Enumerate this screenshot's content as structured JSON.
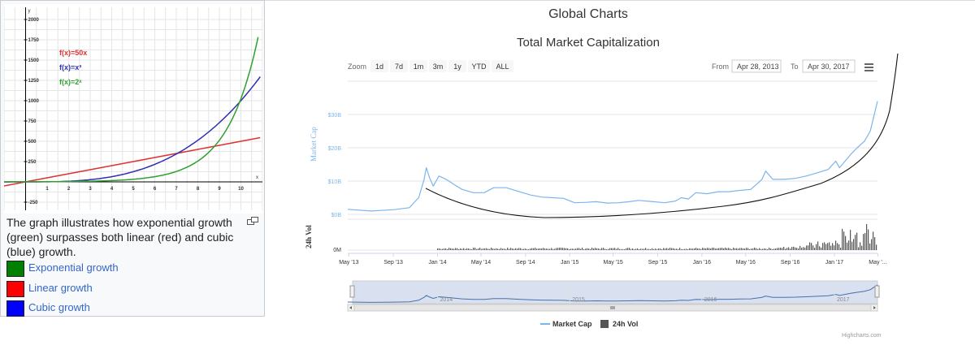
{
  "left_panel": {
    "caption": "The graph illustrates how exponential growth (green) surpasses both linear (red) and cubic (blue) growth.",
    "legend": [
      {
        "label": "Exponential growth",
        "color": "#008000"
      },
      {
        "label": "Linear growth",
        "color": "#ff0000"
      },
      {
        "label": "Cubic growth",
        "color": "#0000ff"
      }
    ],
    "enlarge_icon": "enlarge-icon"
  },
  "page_title": "Global Charts",
  "chart_data": [
    {
      "type": "line",
      "x_ticks": [
        "1",
        "2",
        "3",
        "4",
        "5",
        "6",
        "7",
        "8",
        "9",
        "10"
      ],
      "y_ticks": [
        "-250",
        "250",
        "500",
        "750",
        "1000",
        "1250",
        "1500",
        "1750",
        "2000"
      ],
      "axis_names": {
        "x": "x",
        "y": "y"
      },
      "xlim": [
        -1,
        11
      ],
      "ylim": [
        -350,
        2150
      ],
      "annotations": [
        {
          "text": "f(x)=50x",
          "color": "#e03030"
        },
        {
          "text": "f(x)=x³",
          "color": "#3030b0"
        },
        {
          "text": "f(x)=2ˣ",
          "color": "#30a030"
        }
      ],
      "series": [
        {
          "color": "#e03030",
          "x": [
            -1,
            0,
            1,
            2,
            3,
            4,
            5,
            6,
            7,
            8,
            9,
            10,
            11
          ],
          "values": [
            -50,
            0,
            50,
            100,
            150,
            200,
            250,
            300,
            350,
            400,
            450,
            500,
            550
          ]
        },
        {
          "color": "#3030b0",
          "x": [
            -1,
            0,
            1,
            2,
            3,
            4,
            5,
            6,
            7,
            8,
            9,
            10,
            11
          ],
          "values": [
            -1,
            0,
            1,
            8,
            27,
            64,
            125,
            216,
            343,
            512,
            729,
            1000,
            1331
          ]
        },
        {
          "color": "#30a030",
          "x": [
            -1,
            0,
            1,
            2,
            3,
            4,
            5,
            6,
            7,
            8,
            9,
            10,
            11
          ],
          "values": [
            0.5,
            1,
            2,
            4,
            8,
            16,
            32,
            64,
            128,
            256,
            512,
            1024,
            2048
          ]
        }
      ],
      "grid": true
    },
    {
      "type": "line",
      "title": "Total Market Capitalization",
      "ylabel": "Market Cap",
      "ylabel_volume": "24h Vol",
      "y_ticks": [
        "$0B",
        "$10B",
        "$20B",
        "$30B"
      ],
      "volume_ticks": [
        "0M"
      ],
      "ylim": [
        0,
        40
      ],
      "x_ticks": [
        "May '13",
        "Sep '13",
        "Jan '14",
        "May '14",
        "Sep '14",
        "Jan '15",
        "May '15",
        "Sep '15",
        "Jan '16",
        "May '16",
        "Sep '16",
        "Jan '17",
        "May '..."
      ],
      "x_tick_dates": [
        "2013-05-01",
        "2013-09-01",
        "2014-01-01",
        "2014-05-01",
        "2014-09-01",
        "2015-01-01",
        "2015-05-01",
        "2015-09-01",
        "2016-01-01",
        "2016-05-01",
        "2016-09-01",
        "2017-01-01",
        "2017-05-01"
      ],
      "navigator_labels": [
        "2014",
        "2015",
        "2016",
        "2017"
      ],
      "navigator_label_dates": [
        "2014-01-01",
        "2015-01-01",
        "2016-01-01",
        "2017-01-01"
      ],
      "zoom_label": "Zoom",
      "zoom_buttons": [
        "1d",
        "7d",
        "1m",
        "3m",
        "1y",
        "YTD",
        "ALL"
      ],
      "from_label": "From",
      "from_value": "Apr 28, 2013",
      "to_label": "To",
      "to_value": "Apr 30, 2017",
      "legend": [
        {
          "label": "Market Cap",
          "color": "#7cb5ec"
        },
        {
          "label": "24h Vol",
          "color": "#434348"
        }
      ],
      "credits": "Highcharts.com",
      "series": [
        {
          "name": "Market Cap",
          "color": "#7cb5ec",
          "x": [
            "2013-04-28",
            "2013-07-01",
            "2013-09-01",
            "2013-10-15",
            "2013-11-10",
            "2013-11-25",
            "2013-12-01",
            "2013-12-10",
            "2013-12-20",
            "2014-01-05",
            "2014-01-25",
            "2014-02-15",
            "2014-03-10",
            "2014-04-10",
            "2014-05-10",
            "2014-06-05",
            "2014-07-10",
            "2014-08-15",
            "2014-09-15",
            "2014-10-15",
            "2014-11-15",
            "2014-12-15",
            "2015-01-15",
            "2015-02-15",
            "2015-03-15",
            "2015-04-15",
            "2015-05-15",
            "2015-06-15",
            "2015-07-10",
            "2015-08-20",
            "2015-09-20",
            "2015-10-20",
            "2015-11-05",
            "2015-11-25",
            "2015-12-15",
            "2016-01-15",
            "2016-02-15",
            "2016-03-15",
            "2016-04-15",
            "2016-05-15",
            "2016-06-15",
            "2016-06-25",
            "2016-07-15",
            "2016-08-15",
            "2016-09-15",
            "2016-10-15",
            "2016-11-15",
            "2016-12-15",
            "2017-01-05",
            "2017-01-15",
            "2017-02-15",
            "2017-03-05",
            "2017-03-25",
            "2017-04-10",
            "2017-04-30"
          ],
          "values": [
            1.5,
            1.0,
            1.4,
            2.0,
            5.0,
            10.5,
            14.0,
            11.0,
            8.5,
            11.5,
            10.5,
            9.0,
            7.5,
            6.5,
            6.5,
            8.0,
            8.0,
            6.8,
            5.8,
            5.2,
            5.0,
            4.8,
            3.5,
            3.6,
            3.8,
            3.4,
            3.5,
            3.8,
            4.2,
            3.8,
            3.5,
            4.0,
            5.0,
            4.6,
            6.5,
            6.2,
            6.8,
            6.8,
            7.2,
            7.5,
            10.5,
            13.0,
            10.5,
            10.5,
            10.8,
            11.5,
            12.5,
            13.5,
            16.0,
            14.0,
            18.0,
            20.0,
            22.0,
            25.0,
            34.0
          ]
        },
        {
          "name": "24h Vol",
          "color": "#434348"
        }
      ]
    }
  ]
}
